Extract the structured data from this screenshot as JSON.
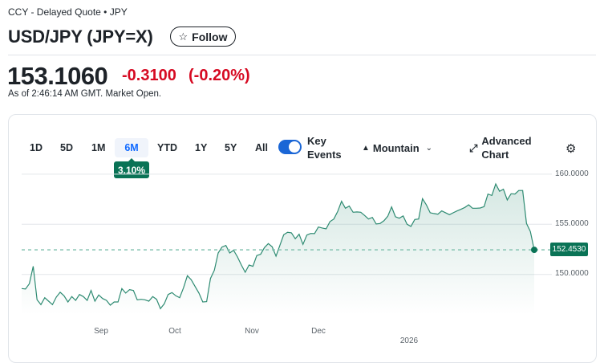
{
  "header": {
    "breadcrumb": "CCY - Delayed Quote • JPY",
    "title": "USD/JPY (JPY=X)",
    "follow_label": "Follow",
    "follow_icon": "star-outline-icon"
  },
  "quote": {
    "price": "153.1060",
    "change": "-0.3100",
    "change_percent": "(-0.20%)",
    "as_of": "As of 2:46:14 AM GMT. Market Open.",
    "change_color": "#d60a22"
  },
  "toolbar": {
    "ranges": [
      "1D",
      "5D",
      "1M",
      "6M",
      "YTD",
      "1Y",
      "5Y",
      "All"
    ],
    "active_range": "6M",
    "range_change": "3.10%",
    "key_events_label_1": "Key",
    "key_events_label_2": "Events",
    "key_events_on": true,
    "chart_type": "Mountain",
    "advanced_label_1": "Advanced",
    "advanced_label_2": "Chart"
  },
  "chart_data": {
    "type": "area",
    "y_ticks": [
      "160.0000",
      "155.0000",
      "150.0000"
    ],
    "y_tick_values": [
      160,
      155,
      150
    ],
    "x_ticks": [
      "Sep",
      "Oct",
      "Nov",
      "Dec",
      "2026"
    ],
    "current_value": "152.4530",
    "current": 152.453,
    "line_color": "#2e8b72",
    "accent_color": "#0a7356",
    "grid": true,
    "values": [
      148.59,
      148.54,
      149.07,
      150.81,
      147.47,
      146.99,
      147.68,
      147.33,
      146.99,
      147.74,
      148.22,
      147.87,
      147.25,
      147.79,
      147.41,
      148.0,
      147.79,
      147.41,
      148.4,
      147.33,
      147.95,
      147.6,
      147.41,
      146.93,
      147.25,
      147.25,
      148.59,
      148.14,
      148.48,
      148.4,
      147.47,
      147.52,
      147.47,
      147.33,
      147.79,
      147.52,
      146.59,
      147.07,
      148.0,
      148.19,
      147.87,
      147.68,
      148.67,
      149.87,
      149.47,
      148.8,
      148.14,
      147.25,
      147.28,
      149.6,
      150.41,
      152.14,
      152.73,
      152.89,
      152.14,
      152.41,
      151.74,
      150.94,
      150.22,
      150.94,
      150.81,
      151.88,
      152.01,
      152.68,
      153.08,
      152.76,
      151.82,
      152.89,
      153.96,
      154.2,
      154.15,
      153.56,
      154.01,
      153.0,
      153.93,
      154.09,
      154.07,
      154.73,
      154.63,
      154.55,
      155.27,
      155.53,
      156.28,
      157.3,
      156.6,
      156.82,
      156.2,
      156.23,
      156.2,
      155.88,
      155.53,
      155.69,
      155.03,
      155.08,
      155.35,
      155.8,
      156.74,
      155.75,
      155.61,
      155.83,
      155.0,
      154.79,
      155.48,
      155.53,
      157.56,
      156.95,
      156.15,
      156.07,
      156.01,
      156.34,
      156.15,
      155.96,
      156.15,
      156.34,
      156.5,
      156.68,
      156.95,
      156.6,
      156.6,
      156.63,
      156.76,
      158.02,
      157.88,
      159.03,
      158.29,
      158.5,
      157.43,
      158.05,
      158.02,
      158.37,
      158.37,
      155.08,
      154.28,
      152.453
    ]
  }
}
